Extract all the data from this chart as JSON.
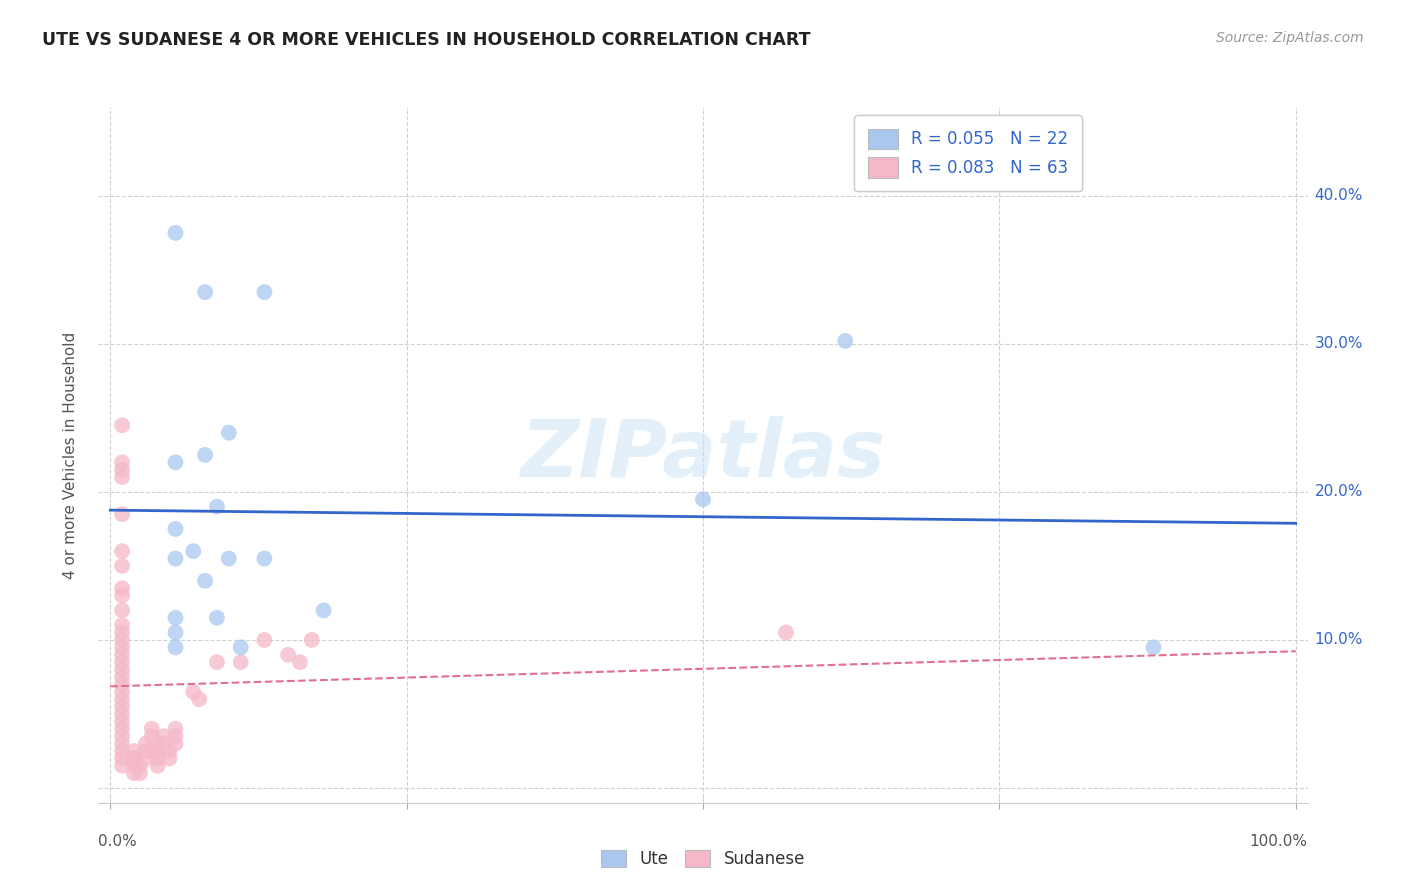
{
  "title": "UTE VS SUDANESE 4 OR MORE VEHICLES IN HOUSEHOLD CORRELATION CHART",
  "source": "Source: ZipAtlas.com",
  "ylabel": "4 or more Vehicles in Household",
  "xlim": [
    -0.01,
    1.01
  ],
  "ylim": [
    -0.01,
    0.46
  ],
  "xticks": [
    0.0,
    0.25,
    0.5,
    0.75,
    1.0
  ],
  "xticklabels": [
    "0.0%",
    "",
    "",
    "",
    "100.0%"
  ],
  "yticks": [
    0.0,
    0.1,
    0.2,
    0.3,
    0.4
  ],
  "yticklabels_right": [
    "",
    "10.0%",
    "20.0%",
    "30.0%",
    "40.0%"
  ],
  "background_color": "#ffffff",
  "grid_color": "#cccccc",
  "watermark": "ZIPatlas",
  "ute_color": "#a8c8f0",
  "sudanese_color": "#f5b8c8",
  "ute_line_color": "#3366cc",
  "sudanese_line_color": "#e07090",
  "legend_label_ute": "R = 0.055   N = 22",
  "legend_label_sudanese": "R = 0.083   N = 63",
  "legend_bottom_ute": "Ute",
  "legend_bottom_sudanese": "Sudanese",
  "ute_x": [
    0.055,
    0.08,
    0.13,
    0.08,
    0.055,
    0.09,
    0.1,
    0.055,
    0.07,
    0.055,
    0.08,
    0.1,
    0.13,
    0.18,
    0.09,
    0.11,
    0.5,
    0.62,
    0.88,
    0.055,
    0.055,
    0.055
  ],
  "ute_y": [
    0.375,
    0.335,
    0.335,
    0.225,
    0.22,
    0.19,
    0.24,
    0.175,
    0.16,
    0.155,
    0.14,
    0.155,
    0.155,
    0.12,
    0.115,
    0.095,
    0.195,
    0.302,
    0.095,
    0.115,
    0.105,
    0.095
  ],
  "sudanese_x": [
    0.01,
    0.01,
    0.01,
    0.01,
    0.01,
    0.01,
    0.01,
    0.01,
    0.01,
    0.01,
    0.01,
    0.01,
    0.01,
    0.01,
    0.01,
    0.01,
    0.01,
    0.01,
    0.01,
    0.01,
    0.01,
    0.01,
    0.01,
    0.01,
    0.01,
    0.01,
    0.01,
    0.01,
    0.01,
    0.01,
    0.02,
    0.02,
    0.02,
    0.02,
    0.02,
    0.025,
    0.025,
    0.03,
    0.03,
    0.03,
    0.035,
    0.035,
    0.035,
    0.04,
    0.04,
    0.04,
    0.04,
    0.045,
    0.045,
    0.05,
    0.05,
    0.055,
    0.055,
    0.055,
    0.07,
    0.075,
    0.09,
    0.11,
    0.13,
    0.15,
    0.16,
    0.17,
    0.57
  ],
  "sudanese_y": [
    0.245,
    0.22,
    0.215,
    0.21,
    0.185,
    0.16,
    0.15,
    0.135,
    0.13,
    0.12,
    0.11,
    0.105,
    0.1,
    0.095,
    0.09,
    0.085,
    0.08,
    0.075,
    0.07,
    0.065,
    0.06,
    0.055,
    0.05,
    0.045,
    0.04,
    0.035,
    0.03,
    0.025,
    0.02,
    0.015,
    0.025,
    0.02,
    0.015,
    0.01,
    0.02,
    0.015,
    0.01,
    0.025,
    0.02,
    0.03,
    0.025,
    0.04,
    0.035,
    0.03,
    0.025,
    0.02,
    0.015,
    0.035,
    0.03,
    0.025,
    0.02,
    0.04,
    0.035,
    0.03,
    0.065,
    0.06,
    0.085,
    0.085,
    0.1,
    0.09,
    0.085,
    0.1,
    0.105
  ]
}
